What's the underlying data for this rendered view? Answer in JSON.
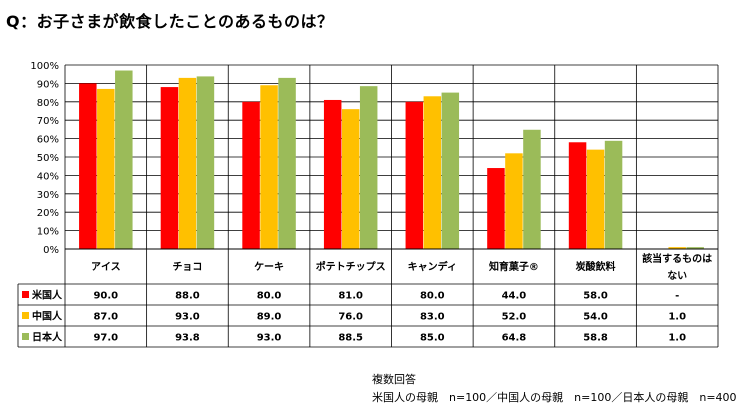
{
  "page": {
    "title": "Q：お子さまが飲食したことのあるものは？",
    "footer_line1": "複数回答",
    "footer_line2": "米国人の母親　n=100／中国人の母親　n=100／日本人の母親　n=400"
  },
  "colors": {
    "us": "#ff0000",
    "cn": "#ffc000",
    "jp": "#9bbb59"
  },
  "chart_data": {
    "type": "bar",
    "title": "Q：お子さまが飲食したことのあるものは？",
    "categories": [
      "アイス",
      "チョコ",
      "ケーキ",
      "ポテトチップス",
      "キャンディ",
      "知育菓子®",
      "炭酸飲料",
      "該当するものはない"
    ],
    "series": [
      {
        "name": "米国人",
        "values": [
          90.0,
          88.0,
          80.0,
          81.0,
          80.0,
          44.0,
          58.0,
          null
        ],
        "labels": [
          "90.0",
          "88.0",
          "80.0",
          "81.0",
          "80.0",
          "44.0",
          "58.0",
          "-"
        ]
      },
      {
        "name": "中国人",
        "values": [
          87.0,
          93.0,
          89.0,
          76.0,
          83.0,
          52.0,
          54.0,
          1.0
        ],
        "labels": [
          "87.0",
          "93.0",
          "89.0",
          "76.0",
          "83.0",
          "52.0",
          "54.0",
          "1.0"
        ]
      },
      {
        "name": "日本人",
        "values": [
          97.0,
          93.8,
          93.0,
          88.5,
          85.0,
          64.8,
          58.8,
          1.0
        ],
        "labels": [
          "97.0",
          "93.8",
          "93.0",
          "88.5",
          "85.0",
          "64.8",
          "58.8",
          "1.0"
        ]
      }
    ],
    "ylim": [
      0,
      100
    ],
    "yticks": [
      "0%",
      "10%",
      "20%",
      "30%",
      "40%",
      "50%",
      "60%",
      "70%",
      "80%",
      "90%",
      "100%"
    ],
    "grid": true,
    "legend": "data-table"
  }
}
